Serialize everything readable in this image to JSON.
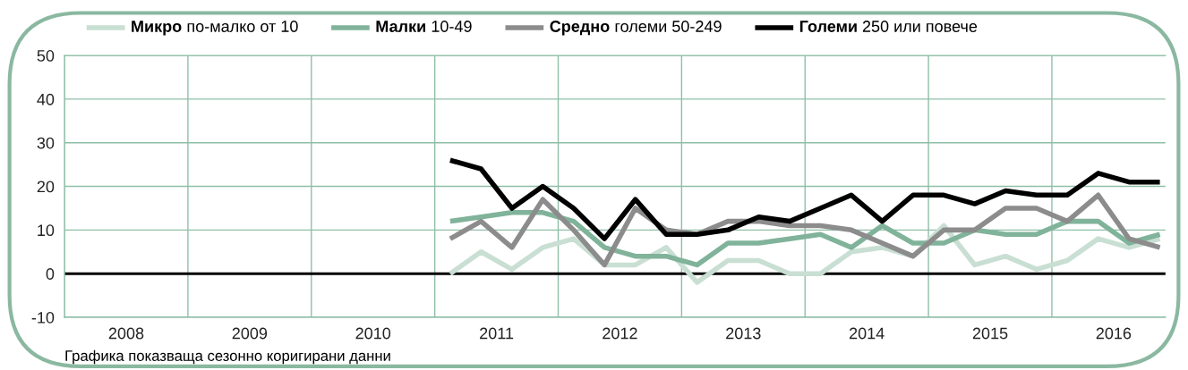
{
  "chart_data": {
    "type": "line",
    "x": [
      2010.625,
      2010.875,
      2011.125,
      2011.375,
      2011.625,
      2011.875,
      2012.125,
      2012.375,
      2012.625,
      2012.875,
      2013.125,
      2013.375,
      2013.625,
      2013.875,
      2014.125,
      2014.375,
      2014.625,
      2014.875,
      2015.125,
      2015.375,
      2015.625,
      2015.875,
      2016.125,
      2016.375
    ],
    "series": [
      {
        "name": "Микро по-малко от 10",
        "color": "#c9dfd3",
        "values": [
          0,
          5,
          1,
          6,
          8,
          2,
          2,
          6,
          -2,
          3,
          3,
          0,
          0,
          5,
          6,
          4,
          11,
          2,
          4,
          1,
          3,
          8,
          6,
          8
        ]
      },
      {
        "name": "Малки 10-49",
        "color": "#80b39a",
        "values": [
          12,
          13,
          14,
          14,
          12,
          6,
          4,
          4,
          2,
          7,
          7,
          8,
          9,
          6,
          11,
          7,
          7,
          10,
          9,
          9,
          12,
          12,
          7,
          9
        ]
      },
      {
        "name": "Средно големи 50-249",
        "color": "#8c8c8c",
        "values": [
          8,
          12,
          6,
          17,
          10,
          2,
          15,
          10,
          9,
          12,
          12,
          11,
          11,
          10,
          7,
          4,
          10,
          10,
          15,
          15,
          12,
          18,
          8,
          6
        ]
      },
      {
        "name": "Големи 250 или повече",
        "color": "#000000",
        "values": [
          26,
          24,
          15,
          20,
          15,
          8,
          17,
          9,
          9,
          10,
          13,
          12,
          15,
          18,
          12,
          18,
          18,
          16,
          19,
          18,
          18,
          23,
          21,
          21
        ]
      }
    ],
    "xlim": [
      2007.5,
      2016.42
    ],
    "xticks": [
      2008,
      2009,
      2010,
      2011,
      2012,
      2013,
      2014,
      2015,
      2016
    ],
    "ylim": [
      -10,
      50
    ],
    "yticks": [
      -10,
      0,
      10,
      20,
      30,
      40,
      50
    ],
    "ref_lines": [
      {
        "axis": "y",
        "value": 0,
        "color": "#000000"
      }
    ],
    "grid": true,
    "legend": "top",
    "marker": "none",
    "line_style": "solid",
    "annotations": [
      "Графика показваща сезонно коригирани данни"
    ]
  }
}
